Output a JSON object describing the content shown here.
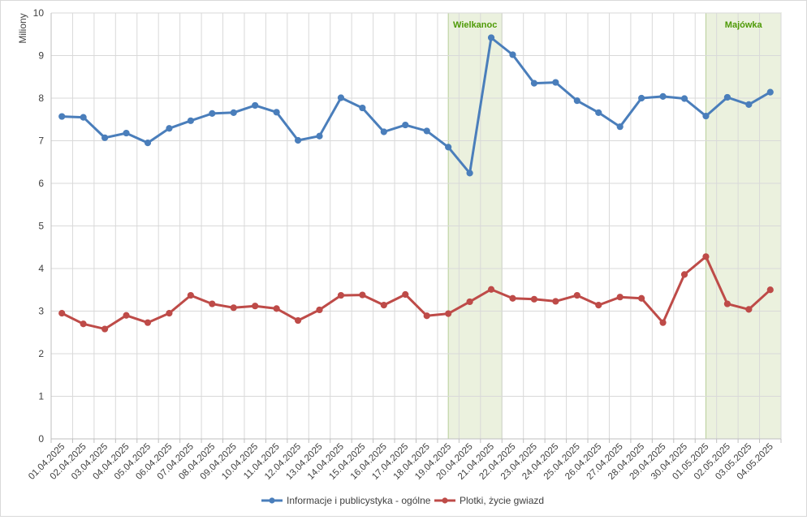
{
  "chart_data": {
    "type": "line",
    "ylabel": "Miliony",
    "ylim": [
      0,
      10
    ],
    "yticks": [
      "0",
      "1",
      "2",
      "3",
      "4",
      "5",
      "6",
      "7",
      "8",
      "9",
      "10"
    ],
    "grid": true,
    "legend_position": "bottom",
    "categories": [
      "01.04.2025",
      "02.04.2025",
      "03.04.2025",
      "04.04.2025",
      "05.04.2025",
      "06.04.2025",
      "07.04.2025",
      "08.04.2025",
      "09.04.2025",
      "10.04.2025",
      "11.04.2025",
      "12.04.2025",
      "13.04.2025",
      "14.04.2025",
      "15.04.2025",
      "16.04.2025",
      "17.04.2025",
      "18.04.2025",
      "19.04.2025",
      "20.04.2025",
      "21.04.2025",
      "22.04.2025",
      "23.04.2025",
      "24.04.2025",
      "25.04.2025",
      "26.04.2025",
      "27.04.2025",
      "28.04.2025",
      "29.04.2025",
      "30.04.2025",
      "01.05.2025",
      "02.05.2025",
      "03.05.2025",
      "04.05.2025"
    ],
    "series": [
      {
        "name": "Informacje i publicystyka - ogólne",
        "color": "#4a7ebb",
        "values": [
          7.57,
          7.55,
          7.07,
          7.18,
          6.95,
          7.29,
          7.47,
          7.64,
          7.66,
          7.83,
          7.67,
          7.01,
          7.11,
          8.01,
          7.77,
          7.21,
          7.37,
          7.23,
          6.85,
          6.24,
          9.42,
          9.02,
          8.35,
          8.37,
          7.94,
          7.66,
          7.33,
          8.0,
          8.04,
          7.99,
          7.58,
          8.02,
          7.85,
          8.14
        ]
      },
      {
        "name": "Plotki, życie gwiazd",
        "color": "#be4b48",
        "values": [
          2.95,
          2.7,
          2.58,
          2.9,
          2.73,
          2.95,
          3.37,
          3.17,
          3.08,
          3.12,
          3.06,
          2.78,
          3.03,
          3.37,
          3.38,
          3.14,
          3.39,
          2.89,
          2.94,
          3.22,
          3.51,
          3.3,
          3.28,
          3.23,
          3.37,
          3.14,
          3.33,
          3.3,
          2.73,
          3.86,
          4.28,
          3.17,
          3.04,
          3.5
        ]
      }
    ],
    "bands": [
      {
        "label": "Wielkanoc",
        "from": "19.04.2025",
        "to": "21.04.2025",
        "color": "#ebf1de",
        "label_color": "#4e9a06"
      },
      {
        "label": "Majówka",
        "from": "01.05.2025",
        "to": "04.05.2025",
        "color": "#ebf1de",
        "label_color": "#4e9a06"
      }
    ]
  }
}
